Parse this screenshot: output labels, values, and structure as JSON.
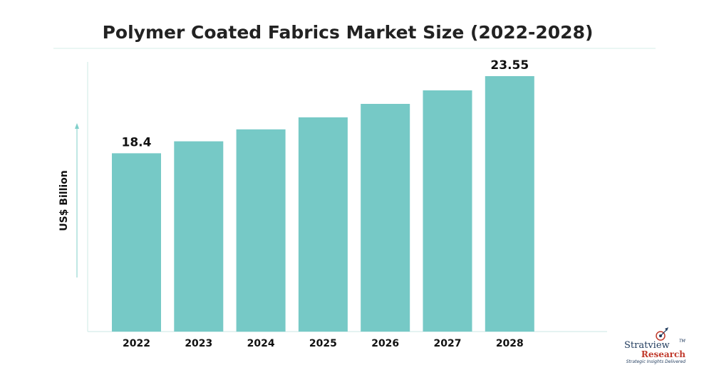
{
  "chart_data": {
    "type": "bar",
    "title": "Polymer Coated Fabrics Market Size (2022-2028)",
    "xlabel": "",
    "ylabel": "US$ Billion",
    "categories": [
      "2022",
      "2023",
      "2024",
      "2025",
      "2026",
      "2027",
      "2028"
    ],
    "values": [
      18.4,
      19.2,
      20.0,
      20.8,
      21.7,
      22.6,
      23.55
    ],
    "data_labels": [
      "18.4",
      "",
      "",
      "",
      "",
      "",
      "23.55"
    ],
    "ylim": [
      6.5,
      24.5
    ],
    "grid": false,
    "bar_color": "#76c9c6",
    "axis_color": "#d5ecea"
  },
  "logo": {
    "name": "Stratview",
    "tm": "TM",
    "sub": "Research",
    "tagline": "Strategic Insights Delivered"
  }
}
